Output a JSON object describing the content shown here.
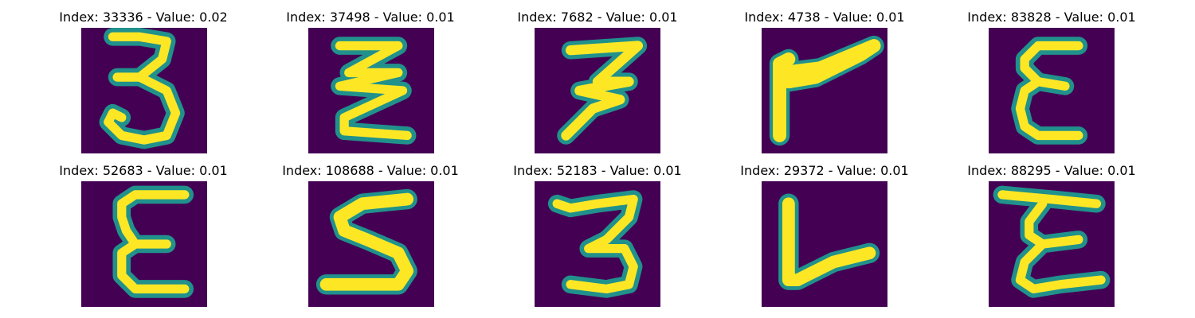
{
  "panels": [
    {
      "title": "Index: 33336 - Value: 0.02",
      "glyph": "three-digit"
    },
    {
      "title": "Index: 37498 - Value: 0.01",
      "glyph": "zigzag-three"
    },
    {
      "title": "Index: 7682 - Value: 0.01",
      "glyph": "slanted-three"
    },
    {
      "title": "Index: 4738 - Value: 0.01",
      "glyph": "flag-stroke"
    },
    {
      "title": "Index: 83828 - Value: 0.01",
      "glyph": "epsilon"
    },
    {
      "title": "Index: 52683 - Value: 0.01",
      "glyph": "epsilon"
    },
    {
      "title": "Index: 108688 - Value: 0.01",
      "glyph": "s-stroke"
    },
    {
      "title": "Index: 52183 - Value: 0.01",
      "glyph": "three-digit"
    },
    {
      "title": "Index: 29372 - Value: 0.01",
      "glyph": "l-stroke"
    },
    {
      "title": "Index: 88295 - Value: 0.01",
      "glyph": "epsilon"
    }
  ],
  "colors": {
    "background": "#440154",
    "stroke_core": "#fde725",
    "stroke_edge": "#21918c"
  }
}
